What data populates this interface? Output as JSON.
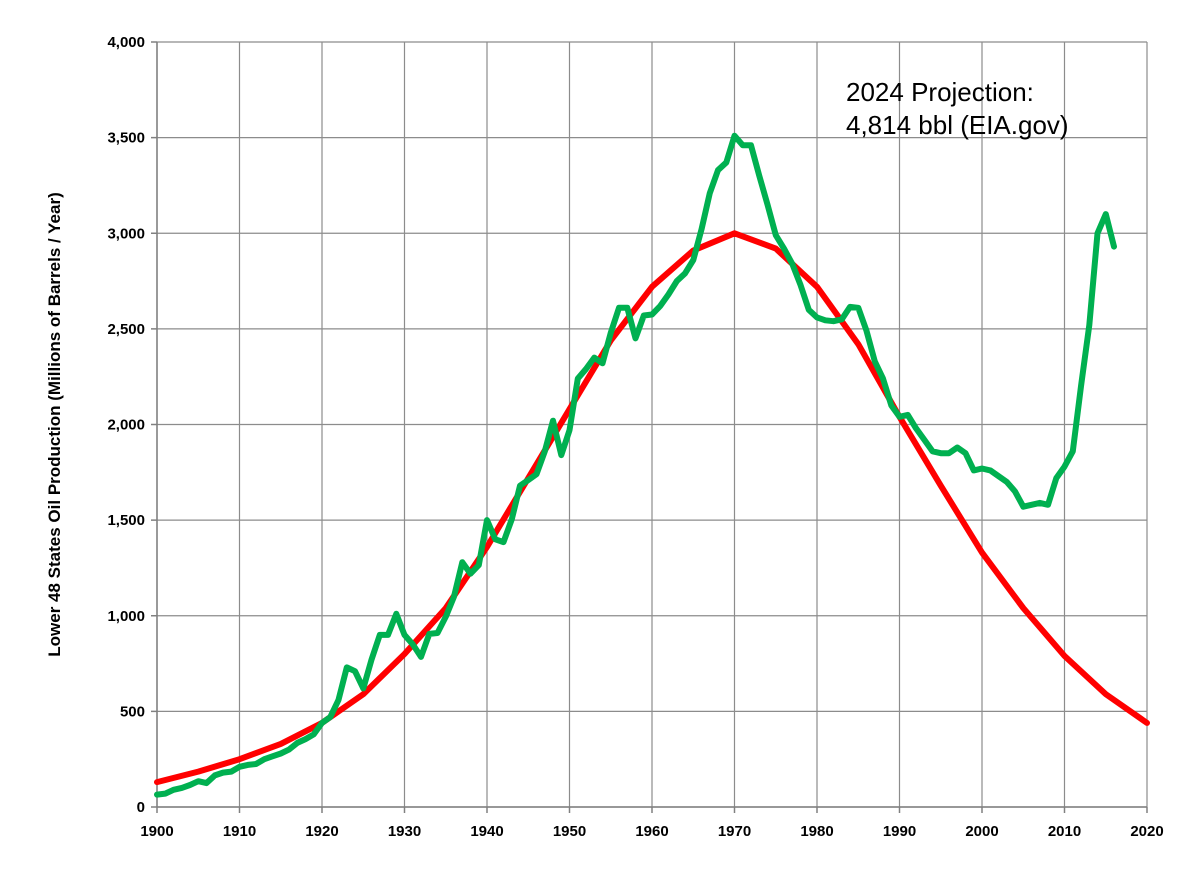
{
  "chart_data": {
    "type": "line",
    "title": "",
    "xlabel": "",
    "ylabel": "Lower 48 States Oil Production (Millions of Barrels / Year)",
    "xlim": [
      1900,
      2020
    ],
    "ylim": [
      0,
      4000
    ],
    "x_ticks": [
      1900,
      1910,
      1920,
      1930,
      1940,
      1950,
      1960,
      1970,
      1980,
      1990,
      2000,
      2010,
      2020
    ],
    "y_ticks": [
      0,
      500,
      1000,
      1500,
      2000,
      2500,
      3000,
      3500,
      4000
    ],
    "x_tick_labels": [
      "1900",
      "1910",
      "1920",
      "1930",
      "1940",
      "1950",
      "1960",
      "1970",
      "1980",
      "1990",
      "2000",
      "2010",
      "2020"
    ],
    "y_tick_labels": [
      "0",
      "500",
      "1,000",
      "1,500",
      "2,000",
      "2,500",
      "3,000",
      "3,500",
      "4,000"
    ],
    "grid": true,
    "legend": "none",
    "annotation": [
      "2024 Projection:",
      "4,814 bbl (EIA.gov)"
    ],
    "series": [
      {
        "color": "#ff0000",
        "x": [
          1900,
          1905,
          1910,
          1915,
          1920,
          1925,
          1930,
          1935,
          1940,
          1945,
          1950,
          1955,
          1960,
          1965,
          1970,
          1975,
          1980,
          1985,
          1990,
          1995,
          2000,
          2005,
          2010,
          2015,
          2020
        ],
        "y": [
          130,
          185,
          250,
          330,
          440,
          590,
          800,
          1040,
          1360,
          1720,
          2080,
          2440,
          2720,
          2910,
          3000,
          2920,
          2720,
          2420,
          2040,
          1680,
          1330,
          1040,
          790,
          590,
          440
        ]
      },
      {
        "color": "#00b050",
        "x": [
          1900,
          1901,
          1902,
          1903,
          1904,
          1905,
          1906,
          1907,
          1908,
          1909,
          1910,
          1911,
          1912,
          1913,
          1914,
          1915,
          1916,
          1917,
          1918,
          1919,
          1920,
          1921,
          1922,
          1923,
          1924,
          1925,
          1926,
          1927,
          1928,
          1929,
          1930,
          1931,
          1932,
          1933,
          1934,
          1935,
          1936,
          1937,
          1938,
          1939,
          1940,
          1941,
          1942,
          1943,
          1944,
          1945,
          1946,
          1947,
          1948,
          1949,
          1950,
          1951,
          1952,
          1953,
          1954,
          1955,
          1956,
          1957,
          1958,
          1959,
          1960,
          1961,
          1962,
          1963,
          1964,
          1965,
          1966,
          1967,
          1968,
          1969,
          1970,
          1971,
          1972,
          1973,
          1974,
          1975,
          1976,
          1977,
          1978,
          1979,
          1980,
          1981,
          1982,
          1983,
          1984,
          1985,
          1986,
          1987,
          1988,
          1989,
          1990,
          1991,
          1992,
          1993,
          1994,
          1995,
          1996,
          1997,
          1998,
          1999,
          2000,
          2001,
          2002,
          2003,
          2004,
          2005,
          2006,
          2007,
          2008,
          2009,
          2010,
          2011,
          2012,
          2013,
          2014,
          2015,
          2016
        ],
        "y": [
          65,
          70,
          90,
          100,
          115,
          135,
          125,
          165,
          180,
          185,
          210,
          220,
          225,
          250,
          265,
          280,
          300,
          335,
          355,
          380,
          440,
          470,
          560,
          730,
          710,
          620,
          770,
          900,
          900,
          1010,
          900,
          850,
          785,
          905,
          910,
          995,
          1100,
          1280,
          1220,
          1265,
          1500,
          1400,
          1385,
          1505,
          1680,
          1710,
          1740,
          1860,
          2020,
          1840,
          1970,
          2240,
          2290,
          2350,
          2320,
          2480,
          2610,
          2610,
          2450,
          2570,
          2575,
          2620,
          2680,
          2750,
          2790,
          2860,
          3020,
          3210,
          3330,
          3370,
          3510,
          3460,
          3460,
          3300,
          3150,
          2990,
          2920,
          2840,
          2730,
          2600,
          2560,
          2545,
          2540,
          2550,
          2615,
          2610,
          2490,
          2330,
          2240,
          2100,
          2040,
          2050,
          1980,
          1920,
          1860,
          1850,
          1850,
          1880,
          1850,
          1760,
          1770,
          1760,
          1730,
          1700,
          1650,
          1570,
          1580,
          1590,
          1580,
          1720,
          1780,
          1860,
          2200,
          2520,
          3000,
          3100,
          2930
        ]
      }
    ]
  }
}
